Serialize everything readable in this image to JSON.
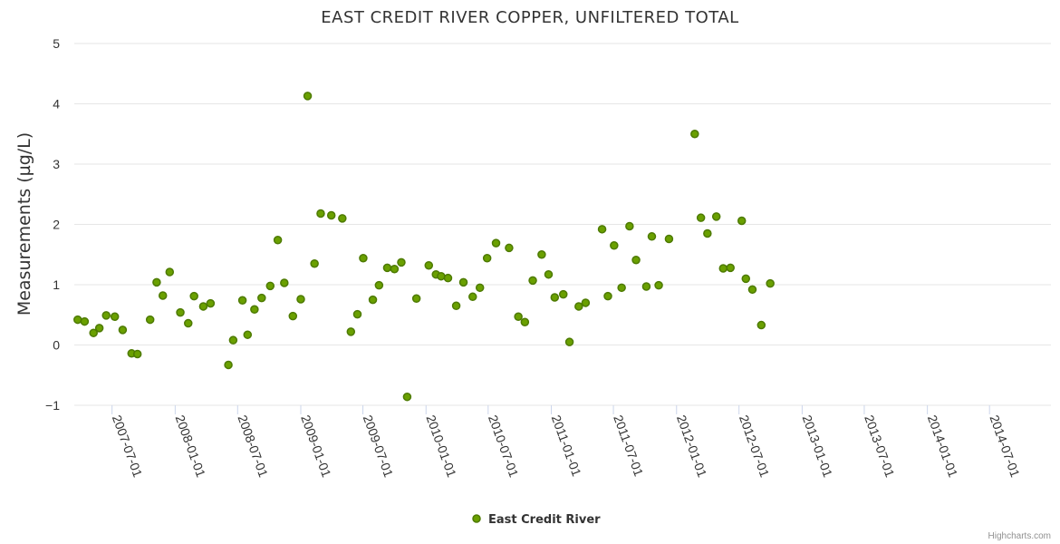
{
  "chart_data": {
    "type": "scatter",
    "title": "EAST CREDIT RIVER COPPER, UNFILTERED TOTAL",
    "ylabel": "Measurements (µg/L)",
    "xlabel": "",
    "ylim": [
      -1,
      5
    ],
    "yticks": [
      -1,
      0,
      1,
      2,
      3,
      4,
      5
    ],
    "xlim": [
      "2007-03-13",
      "2014-12-27"
    ],
    "xticks": [
      "2007-07-01",
      "2008-01-01",
      "2008-07-01",
      "2009-01-01",
      "2009-07-01",
      "2010-01-01",
      "2010-07-01",
      "2011-01-01",
      "2011-07-01",
      "2012-01-01",
      "2012-07-01",
      "2013-01-01",
      "2013-07-01",
      "2014-01-01",
      "2014-07-01"
    ],
    "grid": true,
    "legend_position": "bottom-center",
    "series": [
      {
        "name": "East Credit River",
        "color": "#6aa000",
        "points": [
          [
            "2007-03-23",
            0.42
          ],
          [
            "2007-04-12",
            0.39
          ],
          [
            "2007-05-08",
            0.2
          ],
          [
            "2007-05-25",
            0.28
          ],
          [
            "2007-06-14",
            0.49
          ],
          [
            "2007-07-09",
            0.47
          ],
          [
            "2007-08-01",
            0.25
          ],
          [
            "2007-08-27",
            -0.14
          ],
          [
            "2007-09-13",
            -0.15
          ],
          [
            "2007-10-20",
            0.42
          ],
          [
            "2007-11-08",
            1.04
          ],
          [
            "2007-11-26",
            0.82
          ],
          [
            "2007-12-16",
            1.21
          ],
          [
            "2008-01-16",
            0.54
          ],
          [
            "2008-02-08",
            0.36
          ],
          [
            "2008-02-25",
            0.81
          ],
          [
            "2008-03-23",
            0.64
          ],
          [
            "2008-04-13",
            0.69
          ],
          [
            "2008-06-04",
            -0.33
          ],
          [
            "2008-06-18",
            0.08
          ],
          [
            "2008-07-15",
            0.74
          ],
          [
            "2008-07-30",
            0.17
          ],
          [
            "2008-08-19",
            0.59
          ],
          [
            "2008-09-09",
            0.78
          ],
          [
            "2008-10-04",
            0.98
          ],
          [
            "2008-10-26",
            1.74
          ],
          [
            "2008-11-14",
            1.03
          ],
          [
            "2008-12-09",
            0.48
          ],
          [
            "2009-01-01",
            0.76
          ],
          [
            "2009-01-21",
            4.13
          ],
          [
            "2009-02-10",
            1.35
          ],
          [
            "2009-02-28",
            2.18
          ],
          [
            "2009-03-31",
            2.15
          ],
          [
            "2009-05-02",
            2.1
          ],
          [
            "2009-05-27",
            0.22
          ],
          [
            "2009-06-15",
            0.51
          ],
          [
            "2009-07-02",
            1.44
          ],
          [
            "2009-07-30",
            0.75
          ],
          [
            "2009-08-17",
            0.99
          ],
          [
            "2009-09-10",
            1.28
          ],
          [
            "2009-10-01",
            1.26
          ],
          [
            "2009-10-21",
            1.37
          ],
          [
            "2009-11-07",
            -0.86
          ],
          [
            "2009-12-04",
            0.77
          ],
          [
            "2010-01-09",
            1.32
          ],
          [
            "2010-01-30",
            1.17
          ],
          [
            "2010-02-14",
            1.14
          ],
          [
            "2010-03-06",
            1.11
          ],
          [
            "2010-03-30",
            0.65
          ],
          [
            "2010-04-20",
            1.04
          ],
          [
            "2010-05-17",
            0.8
          ],
          [
            "2010-06-07",
            0.95
          ],
          [
            "2010-06-28",
            1.44
          ],
          [
            "2010-07-24",
            1.69
          ],
          [
            "2010-08-31",
            1.61
          ],
          [
            "2010-09-27",
            0.47
          ],
          [
            "2010-10-16",
            0.38
          ],
          [
            "2010-11-08",
            1.07
          ],
          [
            "2010-12-04",
            1.5
          ],
          [
            "2010-12-24",
            1.17
          ],
          [
            "2011-01-11",
            0.79
          ],
          [
            "2011-02-05",
            0.84
          ],
          [
            "2011-02-23",
            0.05
          ],
          [
            "2011-03-22",
            0.64
          ],
          [
            "2011-04-11",
            0.7
          ],
          [
            "2011-05-29",
            1.92
          ],
          [
            "2011-06-15",
            0.81
          ],
          [
            "2011-07-03",
            1.65
          ],
          [
            "2011-07-25",
            0.95
          ],
          [
            "2011-08-17",
            1.97
          ],
          [
            "2011-09-05",
            1.41
          ],
          [
            "2011-10-05",
            0.97
          ],
          [
            "2011-10-21",
            1.8
          ],
          [
            "2011-11-10",
            0.99
          ],
          [
            "2011-12-10",
            1.76
          ],
          [
            "2012-02-23",
            3.5
          ],
          [
            "2012-03-12",
            2.11
          ],
          [
            "2012-03-31",
            1.85
          ],
          [
            "2012-04-26",
            2.13
          ],
          [
            "2012-05-16",
            1.27
          ],
          [
            "2012-06-06",
            1.28
          ],
          [
            "2012-07-09",
            2.06
          ],
          [
            "2012-07-21",
            1.1
          ],
          [
            "2012-08-09",
            0.92
          ],
          [
            "2012-09-04",
            0.33
          ],
          [
            "2012-09-30",
            1.02
          ]
        ]
      }
    ]
  },
  "legend": {
    "items": [
      {
        "label": "East Credit River"
      }
    ]
  },
  "credits": "Highcharts.com"
}
